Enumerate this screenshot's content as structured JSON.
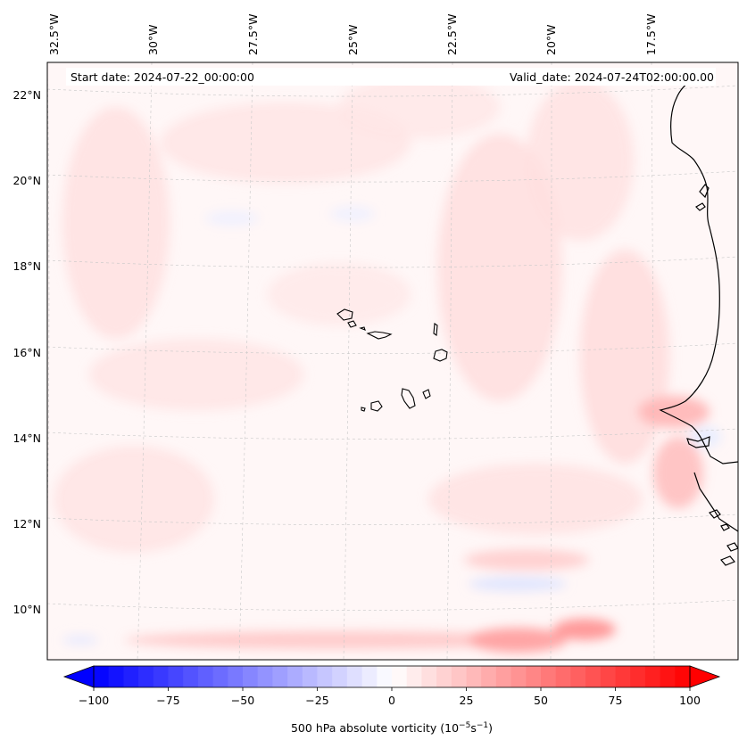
{
  "map": {
    "start_label": "Start date: 2024-07-22_00:00:00",
    "valid_label": "Valid_date: 2024-07-24T02:00:00.00",
    "lon_labels": [
      "32.5°W",
      "30°W",
      "27.5°W",
      "25°W",
      "22.5°W",
      "20°W",
      "17.5°W"
    ],
    "lat_labels": [
      "22°N",
      "20°N",
      "18°N",
      "16°N",
      "14°N",
      "12°N",
      "10°N"
    ]
  },
  "colorbar": {
    "ticks": [
      "−100",
      "−75",
      "−50",
      "−25",
      "0",
      "25",
      "50",
      "75",
      "100"
    ],
    "tick_values": [
      -100,
      -75,
      -50,
      -25,
      0,
      25,
      50,
      75,
      100
    ],
    "min": -100,
    "max": 100,
    "levels": 41,
    "label_prefix": "500 hPa absolute vorticity (10",
    "label_exp1": "−5",
    "label_mid": "s",
    "label_exp2": "−1",
    "label_suffix": ")"
  },
  "colors": {
    "negative": "#0000ff",
    "zero": "#ffffff",
    "positive": "#ff0000",
    "coastline": "#000000",
    "gridline": "#c8c8c8"
  }
}
